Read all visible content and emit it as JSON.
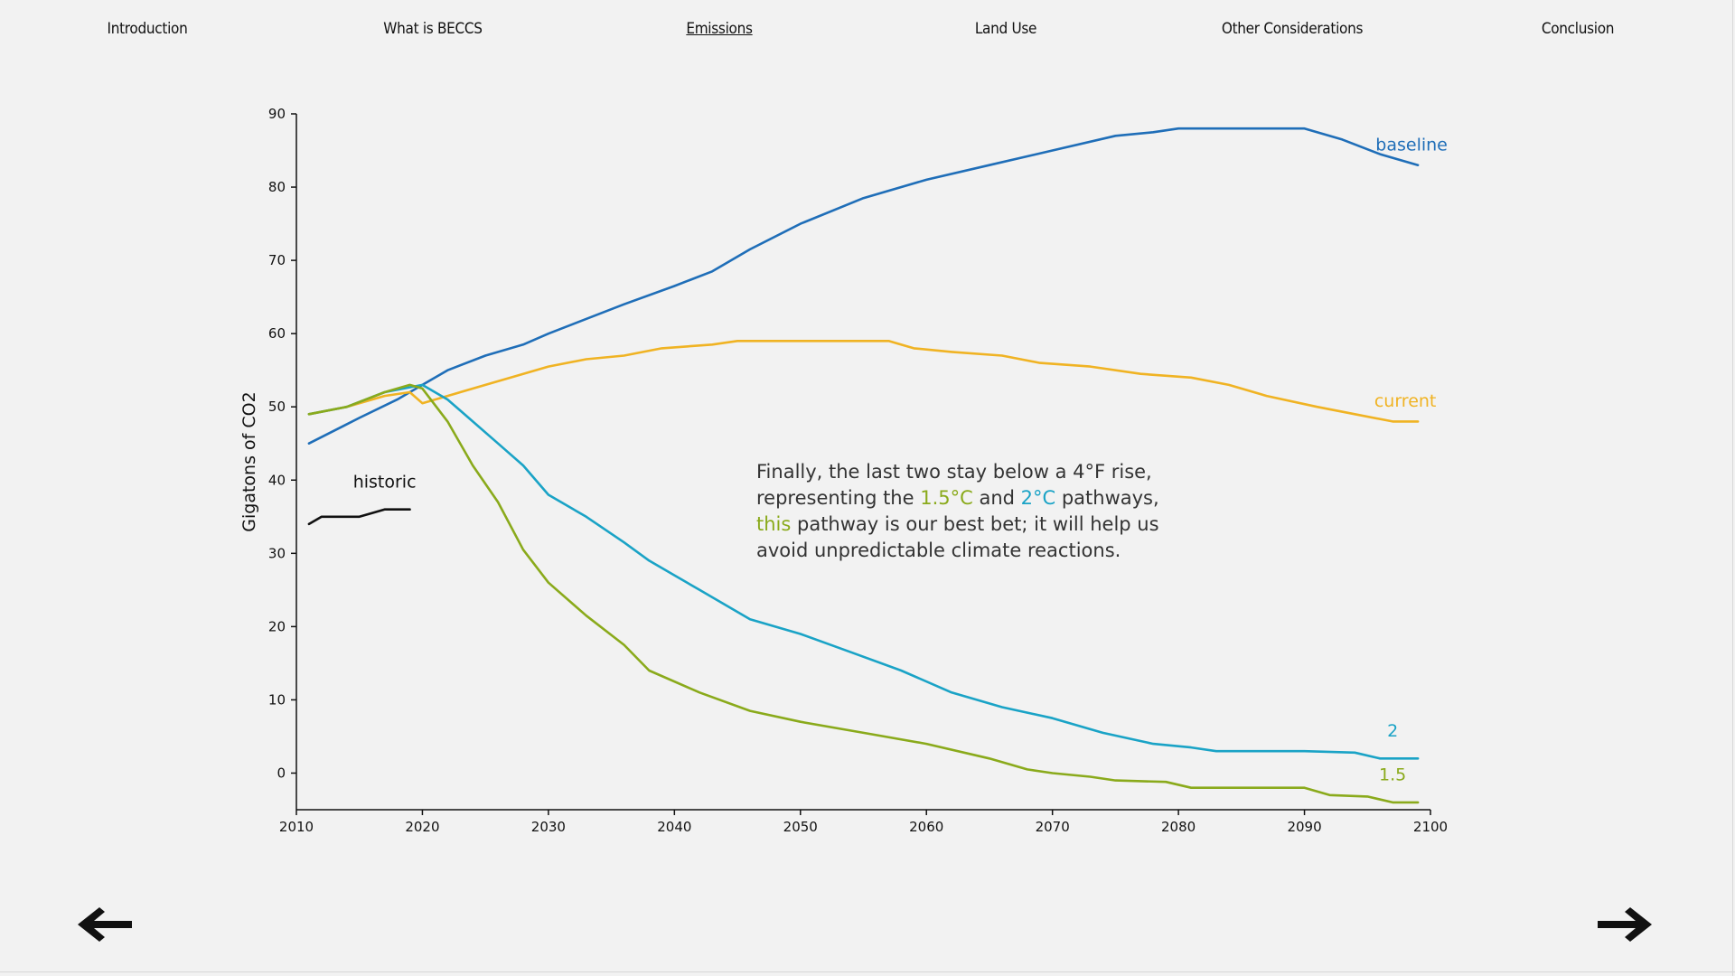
{
  "nav": {
    "items": [
      {
        "label": "Introduction",
        "active": false
      },
      {
        "label": "What is BECCS",
        "active": false
      },
      {
        "label": "Emissions",
        "active": true
      },
      {
        "label": "Land Use",
        "active": false
      },
      {
        "label": "Other Considerations",
        "active": false
      },
      {
        "label": "Conclusion",
        "active": false
      }
    ]
  },
  "annotation": {
    "line1": "Finally, the last two stay below a 4°F rise,",
    "line2_a": "representing the ",
    "line2_b": "1.5°C",
    "line2_c": " and ",
    "line2_d": "2°C",
    "line2_e": " pathways,",
    "line3_a": "this",
    "line3_b": " pathway is our best bet; it will help us",
    "line4": "avoid unpredictable climate reactions."
  },
  "navigation": {
    "prev_icon": "left-arrow-icon",
    "next_icon": "right-arrow-icon"
  },
  "chart_data": {
    "type": "line",
    "title": "",
    "xlabel": "",
    "ylabel": "Gigatons of CO2",
    "xlim": [
      2010,
      2100
    ],
    "ylim": [
      -5,
      90
    ],
    "xticks": [
      2010,
      2020,
      2030,
      2040,
      2050,
      2060,
      2070,
      2080,
      2090,
      2100
    ],
    "yticks": [
      0,
      10,
      20,
      30,
      40,
      50,
      60,
      70,
      80,
      90
    ],
    "series": [
      {
        "name": "baseline",
        "color": "#1f6eb8",
        "points": [
          [
            2011,
            45
          ],
          [
            2015,
            48.5
          ],
          [
            2018,
            51
          ],
          [
            2020,
            53
          ],
          [
            2022,
            55
          ],
          [
            2025,
            57
          ],
          [
            2028,
            58.5
          ],
          [
            2030,
            60
          ],
          [
            2033,
            62
          ],
          [
            2036,
            64
          ],
          [
            2040,
            66.5
          ],
          [
            2043,
            68.5
          ],
          [
            2046,
            71.5
          ],
          [
            2050,
            75
          ],
          [
            2055,
            78.5
          ],
          [
            2060,
            81
          ],
          [
            2065,
            83
          ],
          [
            2070,
            85
          ],
          [
            2075,
            87
          ],
          [
            2078,
            87.5
          ],
          [
            2080,
            88
          ],
          [
            2085,
            88
          ],
          [
            2090,
            88
          ],
          [
            2093,
            86.5
          ],
          [
            2096,
            84.5
          ],
          [
            2099,
            83
          ]
        ]
      },
      {
        "name": "current",
        "color": "#f0b323",
        "points": [
          [
            2011,
            49
          ],
          [
            2014,
            50
          ],
          [
            2017,
            51.5
          ],
          [
            2019,
            52
          ],
          [
            2020,
            50.5
          ],
          [
            2022,
            51.5
          ],
          [
            2025,
            53
          ],
          [
            2028,
            54.5
          ],
          [
            2030,
            55.5
          ],
          [
            2033,
            56.5
          ],
          [
            2036,
            57
          ],
          [
            2039,
            58
          ],
          [
            2043,
            58.5
          ],
          [
            2045,
            59
          ],
          [
            2050,
            59
          ],
          [
            2057,
            59
          ],
          [
            2059,
            58
          ],
          [
            2062,
            57.5
          ],
          [
            2066,
            57
          ],
          [
            2069,
            56
          ],
          [
            2073,
            55.5
          ],
          [
            2077,
            54.5
          ],
          [
            2081,
            54
          ],
          [
            2084,
            53
          ],
          [
            2087,
            51.5
          ],
          [
            2091,
            50
          ],
          [
            2094,
            49
          ],
          [
            2097,
            48
          ],
          [
            2099,
            48
          ]
        ]
      },
      {
        "name": "2",
        "color": "#1aa3c6",
        "points": [
          [
            2011,
            49
          ],
          [
            2014,
            50
          ],
          [
            2017,
            52
          ],
          [
            2020,
            53
          ],
          [
            2022,
            51
          ],
          [
            2024,
            48
          ],
          [
            2026,
            45
          ],
          [
            2028,
            42
          ],
          [
            2030,
            38
          ],
          [
            2033,
            35
          ],
          [
            2036,
            31.5
          ],
          [
            2038,
            29
          ],
          [
            2042,
            25
          ],
          [
            2046,
            21
          ],
          [
            2050,
            19
          ],
          [
            2054,
            16.5
          ],
          [
            2058,
            14
          ],
          [
            2062,
            11
          ],
          [
            2066,
            9
          ],
          [
            2070,
            7.5
          ],
          [
            2074,
            5.5
          ],
          [
            2078,
            4
          ],
          [
            2081,
            3.5
          ],
          [
            2083,
            3
          ],
          [
            2090,
            3
          ],
          [
            2094,
            2.8
          ],
          [
            2096,
            2
          ],
          [
            2099,
            2
          ]
        ]
      },
      {
        "name": "1.5",
        "color": "#8aaa1b",
        "points": [
          [
            2011,
            49
          ],
          [
            2014,
            50
          ],
          [
            2017,
            52
          ],
          [
            2019,
            53
          ],
          [
            2020,
            52.5
          ],
          [
            2022,
            48
          ],
          [
            2024,
            42
          ],
          [
            2026,
            37
          ],
          [
            2028,
            30.5
          ],
          [
            2030,
            26
          ],
          [
            2033,
            21.5
          ],
          [
            2036,
            17.5
          ],
          [
            2038,
            14
          ],
          [
            2042,
            11
          ],
          [
            2046,
            8.5
          ],
          [
            2050,
            7
          ],
          [
            2055,
            5.5
          ],
          [
            2060,
            4
          ],
          [
            2065,
            2
          ],
          [
            2068,
            0.5
          ],
          [
            2070,
            0
          ],
          [
            2073,
            -0.5
          ],
          [
            2075,
            -1
          ],
          [
            2079,
            -1.2
          ],
          [
            2081,
            -2
          ],
          [
            2090,
            -2
          ],
          [
            2092,
            -3
          ],
          [
            2095,
            -3.2
          ],
          [
            2097,
            -4
          ],
          [
            2099,
            -4
          ]
        ]
      },
      {
        "name": "historic",
        "color": "#111111",
        "points": [
          [
            2011,
            34
          ],
          [
            2012,
            35
          ],
          [
            2015,
            35
          ],
          [
            2016,
            35.5
          ],
          [
            2017,
            36
          ],
          [
            2019,
            36
          ]
        ]
      }
    ],
    "series_labels": [
      {
        "text": "baseline",
        "color": "#1f6eb8",
        "x": 2098.5,
        "y": 85
      },
      {
        "text": "current",
        "color": "#f0b323",
        "x": 2098,
        "y": 50
      },
      {
        "text": "2",
        "color": "#1aa3c6",
        "x": 2097,
        "y": 5
      },
      {
        "text": "1.5",
        "color": "#8aaa1b",
        "x": 2097,
        "y": -1
      },
      {
        "text": "historic",
        "color": "#111111",
        "x": 2017,
        "y": 39
      }
    ]
  }
}
